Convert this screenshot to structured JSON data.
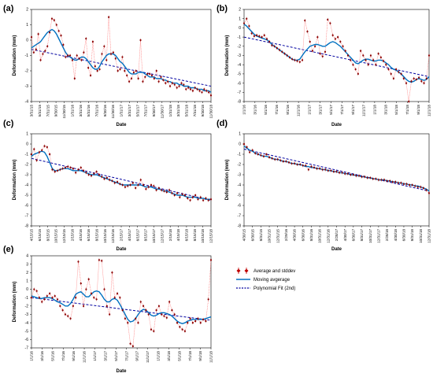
{
  "legend": {
    "items": [
      {
        "label": "Average and stddev",
        "kind": "points",
        "color": "#c00000"
      },
      {
        "label": "Moving avgerage",
        "kind": "line",
        "color": "#0070c0"
      },
      {
        "label": "Polynomial Fit (2nd)",
        "kind": "dashed",
        "color": "#0000a0"
      }
    ]
  },
  "colors": {
    "points": "#8b0000",
    "error_line": "#ff6666",
    "moving_average": "#0070c0",
    "fit": "#0000a0"
  },
  "chart_data": [
    {
      "panel": "(a)",
      "type": "line",
      "xlabel": "Date",
      "ylabel": "Deformation (mm)",
      "ylim": [
        -4,
        2
      ],
      "yticks": [
        2,
        1,
        0,
        -1,
        -2,
        -3,
        -4
      ],
      "x_ticks": [
        "3/31/15",
        "5/31/15",
        "7/31/15",
        "9/30/15",
        "11/30/15",
        "1/31/16",
        "3/31/16",
        "5/31/16",
        "7/31/16",
        "9/30/16",
        "11/30/16",
        "1/31/17",
        "3/31/17",
        "5/31/17",
        "7/31/17",
        "9/30/17",
        "11/30/17",
        "1/31/18",
        "3/31/18",
        "5/31/18",
        "7/31/18",
        "9/30/18",
        "11/30/18"
      ],
      "values": [
        0.2,
        -0.8,
        -0.6,
        0.4,
        -1.3,
        -0.9,
        -0.7,
        -0.4,
        0.5,
        1.4,
        1.3,
        1.0,
        0.6,
        0.3,
        -0.3,
        -1.1,
        -1.0,
        -1.0,
        -1.3,
        -2.5,
        -1.0,
        -1.2,
        -1.3,
        -0.8,
        0.1,
        -1.8,
        -2.3,
        -0.1,
        -1.7,
        -2.0,
        -1.9,
        -0.9,
        -0.4,
        -1.3,
        1.5,
        -0.9,
        -0.8,
        -1.2,
        -2.0,
        -1.9,
        -1.1,
        -2.0,
        -2.3,
        -2.7,
        -2.5,
        -2.1,
        -2.0,
        -2.5,
        0.0,
        -2.7,
        -2.4,
        -2.2,
        -2.2,
        -2.3,
        -2.5,
        -2.0,
        -2.7,
        -2.4,
        -2.6,
        -2.8,
        -2.7,
        -3.0,
        -2.8,
        -2.9,
        -3.1,
        -3.0,
        -2.8,
        -2.9,
        -3.2,
        -3.1,
        -3.2,
        -3.3,
        -3.1,
        -3.2,
        -3.3,
        -3.4,
        -3.2,
        -3.3,
        -3.4,
        -3.6
      ],
      "moving_average": [
        -0.5,
        -0.4,
        -0.3,
        -0.2,
        -0.1,
        0.1,
        0.3,
        0.5,
        0.6,
        0.7,
        0.6,
        0.4,
        0.1,
        -0.2,
        -0.5,
        -0.8,
        -1.0,
        -1.1,
        -1.2,
        -1.3,
        -1.3,
        -1.2,
        -1.1,
        -1.1,
        -1.2,
        -1.4,
        -1.6,
        -1.8,
        -1.9,
        -1.9,
        -1.7,
        -1.4,
        -1.2,
        -1.0,
        -0.9,
        -0.9,
        -0.9,
        -1.0,
        -1.2,
        -1.4,
        -1.5,
        -1.7,
        -1.9,
        -2.1,
        -2.2,
        -2.2,
        -2.2,
        -2.1,
        -2.1,
        -2.1,
        -2.2,
        -2.3,
        -2.4,
        -2.4,
        -2.4,
        -2.5,
        -2.5,
        -2.5,
        -2.6,
        -2.6,
        -2.7,
        -2.7,
        -2.8,
        -2.8,
        -2.8,
        -2.9,
        -2.9,
        -3.0,
        -3.0,
        -3.0,
        -3.1,
        -3.1,
        -3.1,
        -3.2,
        -3.2,
        -3.2,
        -3.3,
        -3.3,
        -3.3,
        -3.4
      ],
      "fit": [
        -0.6,
        -3.0
      ]
    },
    {
      "panel": "(b)",
      "type": "line",
      "xlabel": "Date",
      "ylabel": "Deformation (mm)",
      "ylim": [
        -8,
        2
      ],
      "yticks": [
        2,
        1,
        0,
        -1,
        -2,
        -3,
        -4,
        -5,
        -6,
        -7,
        -8
      ],
      "x_ticks": [
        "1/1/16",
        "3/1/16",
        "5/1/16",
        "7/1/16",
        "9/1/16",
        "11/1/16",
        "1/1/17",
        "3/1/17",
        "5/1/17",
        "7/1/17",
        "9/1/17",
        "11/1/17",
        "1/1/18",
        "3/1/18",
        "5/1/18",
        "7/1/18",
        "9/1/18",
        "11/1/18"
      ],
      "values": [
        0.5,
        1.0,
        0.2,
        -0.6,
        -0.9,
        -0.8,
        -0.9,
        -1.0,
        -0.8,
        -1.2,
        -1.5,
        -1.9,
        -2.0,
        -2.2,
        -2.4,
        -2.6,
        -2.8,
        -3.0,
        -3.2,
        -3.4,
        -3.5,
        -3.6,
        -3.7,
        -3.5,
        0.8,
        -0.4,
        -1.5,
        -2.5,
        -2.0,
        -1.0,
        -2.8,
        -3.1,
        -2.6,
        0.9,
        0.5,
        -0.8,
        -1.2,
        -1.0,
        -1.5,
        -2.0,
        -2.5,
        -3.0,
        -3.5,
        -4.0,
        -4.5,
        -5.0,
        -2.5,
        -3.0,
        -3.5,
        -4.0,
        -3.0,
        -3.5,
        -4.0,
        -2.8,
        -3.2,
        -3.6,
        -4.0,
        -4.5,
        -5.0,
        -5.5,
        -4.5,
        -4.8,
        -5.0,
        -5.5,
        -6.0,
        -8.0,
        -5.8,
        -5.5,
        -5.6,
        -5.4,
        -5.8,
        -6.0,
        -5.5,
        -3.0
      ],
      "moving_average": [
        0.4,
        0.2,
        -0.1,
        -0.4,
        -0.7,
        -0.9,
        -1.0,
        -1.1,
        -1.2,
        -1.3,
        -1.5,
        -1.8,
        -2.0,
        -2.2,
        -2.4,
        -2.6,
        -2.8,
        -3.0,
        -3.2,
        -3.4,
        -3.5,
        -3.5,
        -3.4,
        -3.0,
        -2.6,
        -2.3,
        -2.0,
        -1.9,
        -1.8,
        -1.8,
        -1.9,
        -2.0,
        -2.0,
        -1.8,
        -1.6,
        -1.5,
        -1.6,
        -1.8,
        -2.0,
        -2.3,
        -2.6,
        -2.9,
        -3.2,
        -3.5,
        -3.8,
        -3.9,
        -3.7,
        -3.5,
        -3.4,
        -3.4,
        -3.5,
        -3.6,
        -3.6,
        -3.5,
        -3.5,
        -3.6,
        -3.8,
        -4.0,
        -4.3,
        -4.5,
        -4.6,
        -4.8,
        -5.0,
        -5.3,
        -5.6,
        -5.8,
        -5.9,
        -5.8,
        -5.6,
        -5.5,
        -5.6,
        -5.7,
        -5.6,
        -5.3
      ],
      "fit": [
        -1.0,
        -5.3
      ]
    },
    {
      "panel": "(c)",
      "type": "line",
      "xlabel": "Date",
      "ylabel": "Deformation (mm)",
      "ylim": [
        -8,
        1
      ],
      "yticks": [
        1,
        0,
        -1,
        -2,
        -3,
        -4,
        -5,
        -6,
        -7,
        -8
      ],
      "x_ticks": [
        "4/15/15",
        "6/15/15",
        "8/15/15",
        "10/15/15",
        "12/15/15",
        "2/15/16",
        "4/15/16",
        "6/15/16",
        "8/15/16",
        "10/15/16",
        "12/15/16",
        "2/15/17",
        "4/15/17",
        "6/15/17",
        "8/15/17",
        "10/15/17",
        "12/15/17",
        "2/15/18",
        "4/15/18",
        "6/15/18",
        "8/15/18",
        "10/15/18",
        "12/15/18"
      ],
      "values": [
        -1.0,
        -0.5,
        -1.6,
        -0.8,
        -0.6,
        -0.2,
        -0.3,
        -1.0,
        -2.5,
        -2.7,
        -2.6,
        -2.5,
        -2.4,
        -2.3,
        -2.2,
        -2.3,
        -2.4,
        -2.8,
        -2.5,
        -2.3,
        -2.6,
        -2.8,
        -3.0,
        -3.1,
        -2.9,
        -2.7,
        -3.0,
        -3.2,
        -3.4,
        -3.3,
        -3.5,
        -3.6,
        -3.8,
        -3.7,
        -3.9,
        -4.0,
        -4.2,
        -4.1,
        -4.0,
        -3.8,
        -4.3,
        -4.0,
        -3.5,
        -4.0,
        -4.4,
        -4.2,
        -4.0,
        -4.1,
        -4.5,
        -4.3,
        -4.5,
        -4.6,
        -4.7,
        -4.5,
        -4.8,
        -5.0,
        -4.8,
        -5.2,
        -4.9,
        -5.0,
        -5.3,
        -5.5,
        -5.2,
        -5.0,
        -5.4,
        -5.2,
        -5.5,
        -5.3,
        -5.5,
        -5.4
      ],
      "moving_average": [
        -1.2,
        -1.0,
        -0.9,
        -0.8,
        -0.7,
        -0.8,
        -1.2,
        -1.8,
        -2.4,
        -2.6,
        -2.6,
        -2.5,
        -2.4,
        -2.4,
        -2.4,
        -2.5,
        -2.6,
        -2.6,
        -2.6,
        -2.6,
        -2.7,
        -2.8,
        -2.9,
        -3.0,
        -3.0,
        -3.0,
        -3.1,
        -3.2,
        -3.3,
        -3.4,
        -3.5,
        -3.6,
        -3.7,
        -3.8,
        -3.9,
        -4.0,
        -4.0,
        -4.0,
        -4.0,
        -4.0,
        -4.0,
        -4.0,
        -4.0,
        -4.1,
        -4.2,
        -4.2,
        -4.2,
        -4.3,
        -4.4,
        -4.4,
        -4.5,
        -4.6,
        -4.6,
        -4.7,
        -4.8,
        -4.9,
        -5.0,
        -5.0,
        -5.0,
        -5.1,
        -5.2,
        -5.2,
        -5.2,
        -5.2,
        -5.3,
        -5.3,
        -5.3,
        -5.4,
        -5.4,
        -5.4
      ],
      "fit": [
        -1.4,
        -5.5
      ]
    },
    {
      "panel": "(d)",
      "type": "line",
      "xlabel": "Date",
      "ylabel": "Deformation (mm)",
      "ylim": [
        -8,
        1
      ],
      "yticks": [
        1,
        0,
        -1,
        -2,
        -3,
        -4,
        -5,
        -6,
        -7,
        -8
      ],
      "x_ticks": [
        "4/30/15",
        "6/30/15",
        "8/31/15",
        "10/31/15",
        "12/31/15",
        "2/29/16",
        "4/30/16",
        "6/30/16",
        "8/31/16",
        "10/31/16",
        "12/31/16",
        "2/28/17",
        "4/30/17",
        "6/30/17",
        "8/31/17",
        "10/31/17",
        "12/31/17",
        "2/28/18",
        "4/30/18",
        "6/30/18",
        "8/31/18",
        "10/31/18",
        "12/31/18"
      ],
      "values": [
        0.0,
        -0.3,
        -0.8,
        -0.6,
        -0.9,
        -1.0,
        -1.1,
        -1.2,
        -1.0,
        -1.3,
        -1.4,
        -1.5,
        -1.5,
        -1.6,
        -1.7,
        -1.7,
        -1.8,
        -1.9,
        -1.9,
        -2.0,
        -2.0,
        -2.1,
        -2.1,
        -2.5,
        -2.2,
        -2.3,
        -2.4,
        -2.4,
        -2.5,
        -2.5,
        -2.6,
        -2.6,
        -2.7,
        -2.7,
        -2.8,
        -2.8,
        -2.9,
        -2.9,
        -3.0,
        -3.0,
        -3.1,
        -3.1,
        -3.2,
        -3.2,
        -3.3,
        -3.3,
        -3.4,
        -3.4,
        -3.5,
        -3.5,
        -3.5,
        -3.6,
        -3.6,
        -3.7,
        -3.7,
        -3.8,
        -3.8,
        -3.9,
        -3.9,
        -4.0,
        -4.0,
        -4.1,
        -4.2,
        -4.2,
        -4.3,
        -4.5,
        -4.8
      ],
      "moving_average": [
        -0.2,
        -0.4,
        -0.6,
        -0.7,
        -0.9,
        -1.0,
        -1.1,
        -1.2,
        -1.2,
        -1.3,
        -1.4,
        -1.5,
        -1.5,
        -1.6,
        -1.7,
        -1.7,
        -1.8,
        -1.9,
        -1.9,
        -2.0,
        -2.0,
        -2.1,
        -2.2,
        -2.2,
        -2.3,
        -2.3,
        -2.4,
        -2.4,
        -2.5,
        -2.5,
        -2.6,
        -2.6,
        -2.7,
        -2.7,
        -2.8,
        -2.8,
        -2.9,
        -2.9,
        -3.0,
        -3.0,
        -3.1,
        -3.1,
        -3.2,
        -3.2,
        -3.3,
        -3.3,
        -3.4,
        -3.4,
        -3.5,
        -3.5,
        -3.5,
        -3.6,
        -3.6,
        -3.7,
        -3.7,
        -3.8,
        -3.8,
        -3.9,
        -3.9,
        -4.0,
        -4.0,
        -4.1,
        -4.1,
        -4.2,
        -4.3,
        -4.4,
        -4.6
      ],
      "fit": [
        -0.5,
        -4.6
      ]
    },
    {
      "panel": "(e)",
      "type": "line",
      "xlabel": "Date",
      "ylabel": "Deformation (mm)",
      "ylim": [
        -7,
        4
      ],
      "yticks": [
        4,
        3,
        2,
        1,
        0,
        -1,
        -2,
        -3,
        -4,
        -5,
        -6,
        -7
      ],
      "x_ticks": [
        "1/1/16",
        "3/1/16",
        "5/1/16",
        "7/1/16",
        "9/1/16",
        "11/1/16",
        "1/1/17",
        "3/1/17",
        "5/1/17",
        "7/1/17",
        "9/1/17",
        "11/1/17",
        "1/1/18",
        "3/1/18",
        "5/1/18",
        "7/1/18",
        "9/1/18",
        "11/1/18"
      ],
      "values": [
        -1.0,
        0.0,
        -0.2,
        -1.0,
        -1.5,
        -1.2,
        -0.8,
        -0.5,
        -1.0,
        -0.8,
        -1.2,
        -2.0,
        -2.5,
        -3.0,
        -3.2,
        -3.5,
        -2.0,
        -1.0,
        3.3,
        0.7,
        -2.0,
        0.0,
        1.2,
        -0.5,
        -1.0,
        -1.2,
        3.5,
        3.4,
        0.0,
        -2.0,
        -3.0,
        2.0,
        -1.0,
        -0.5,
        -1.0,
        -2.5,
        -3.5,
        -4.0,
        -6.5,
        -6.8,
        -3.5,
        -4.0,
        -1.5,
        -2.0,
        -2.5,
        -3.0,
        -4.8,
        -5.0,
        -2.5,
        -2.0,
        -3.0,
        -3.2,
        -3.4,
        -1.5,
        -2.5,
        -3.0,
        -4.0,
        -4.5,
        -4.8,
        -5.0,
        -4.0,
        -3.5,
        -4.0,
        -3.8,
        -3.5,
        -4.0,
        -3.6,
        -3.8,
        -1.2,
        3.5
      ],
      "moving_average": [
        -0.8,
        -0.9,
        -1.0,
        -1.1,
        -1.1,
        -1.0,
        -1.0,
        -1.0,
        -1.1,
        -1.3,
        -1.5,
        -1.6,
        -1.8,
        -2.0,
        -2.0,
        -1.7,
        -1.2,
        -0.6,
        -0.4,
        -0.3,
        -0.6,
        -0.9,
        -0.9,
        -0.6,
        -0.3,
        -0.2,
        -0.3,
        -0.7,
        -1.2,
        -1.5,
        -1.5,
        -1.2,
        -1.1,
        -1.3,
        -1.8,
        -2.4,
        -3.0,
        -3.6,
        -3.9,
        -3.8,
        -3.5,
        -3.0,
        -2.6,
        -2.4,
        -2.5,
        -2.8,
        -3.1,
        -3.2,
        -3.1,
        -2.9,
        -2.8,
        -2.8,
        -2.9,
        -3.0,
        -3.2,
        -3.5,
        -3.8,
        -4.0,
        -4.1,
        -4.0,
        -3.8,
        -3.7,
        -3.6,
        -3.6,
        -3.6,
        -3.6,
        -3.6,
        -3.5,
        -3.4,
        -3.3
      ],
      "fit": [
        -1.0,
        -3.7
      ]
    }
  ]
}
